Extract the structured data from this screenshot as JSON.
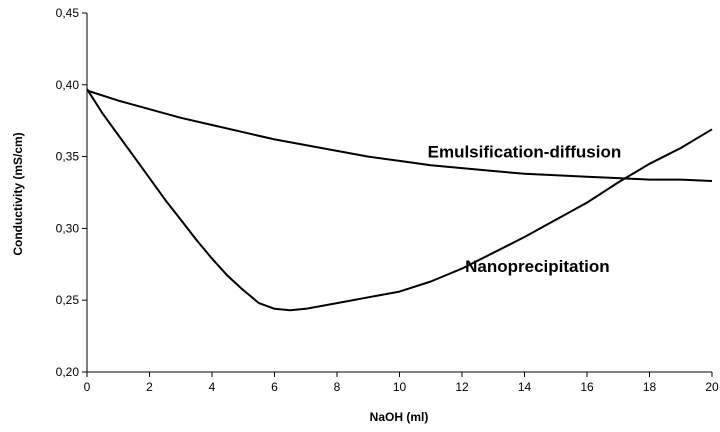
{
  "chart_data": {
    "type": "line",
    "title": "",
    "xlabel": "NaOH (ml)",
    "ylabel": "Conductivity (mS/cm)",
    "xlim": [
      0,
      20
    ],
    "ylim": [
      0.2,
      0.45
    ],
    "x_ticks": [
      "0",
      "2",
      "4",
      "6",
      "8",
      "10",
      "12",
      "14",
      "16",
      "18",
      "20"
    ],
    "y_ticks": [
      "0,20",
      "0,25",
      "0,30",
      "0,35",
      "0,40",
      "0,45"
    ],
    "grid": false,
    "legend": "none",
    "line_color": "#000000",
    "series": [
      {
        "name": "Emulsification-diffusion",
        "points": [
          [
            0,
            0.396
          ],
          [
            1,
            0.389
          ],
          [
            2,
            0.383
          ],
          [
            3,
            0.377
          ],
          [
            4,
            0.372
          ],
          [
            5,
            0.367
          ],
          [
            6,
            0.362
          ],
          [
            7,
            0.358
          ],
          [
            8,
            0.354
          ],
          [
            9,
            0.35
          ],
          [
            10,
            0.347
          ],
          [
            11,
            0.344
          ],
          [
            12,
            0.342
          ],
          [
            13,
            0.34
          ],
          [
            14,
            0.338
          ],
          [
            15,
            0.337
          ],
          [
            16,
            0.336
          ],
          [
            17,
            0.335
          ],
          [
            18,
            0.334
          ],
          [
            19,
            0.334
          ],
          [
            20,
            0.333
          ]
        ]
      },
      {
        "name": "Nanoprecipitation",
        "points": [
          [
            0,
            0.397
          ],
          [
            0.5,
            0.38
          ],
          [
            1,
            0.365
          ],
          [
            1.5,
            0.35
          ],
          [
            2,
            0.335
          ],
          [
            2.5,
            0.32
          ],
          [
            3,
            0.306
          ],
          [
            3.5,
            0.292
          ],
          [
            4,
            0.279
          ],
          [
            4.5,
            0.267
          ],
          [
            5,
            0.257
          ],
          [
            5.5,
            0.248
          ],
          [
            6,
            0.244
          ],
          [
            6.5,
            0.243
          ],
          [
            7,
            0.244
          ],
          [
            8,
            0.248
          ],
          [
            9,
            0.252
          ],
          [
            10,
            0.256
          ],
          [
            11,
            0.263
          ],
          [
            12,
            0.272
          ],
          [
            13,
            0.283
          ],
          [
            14,
            0.294
          ],
          [
            15,
            0.306
          ],
          [
            16,
            0.318
          ],
          [
            17,
            0.332
          ],
          [
            18,
            0.345
          ],
          [
            19,
            0.356
          ],
          [
            20,
            0.369
          ]
        ]
      }
    ]
  }
}
